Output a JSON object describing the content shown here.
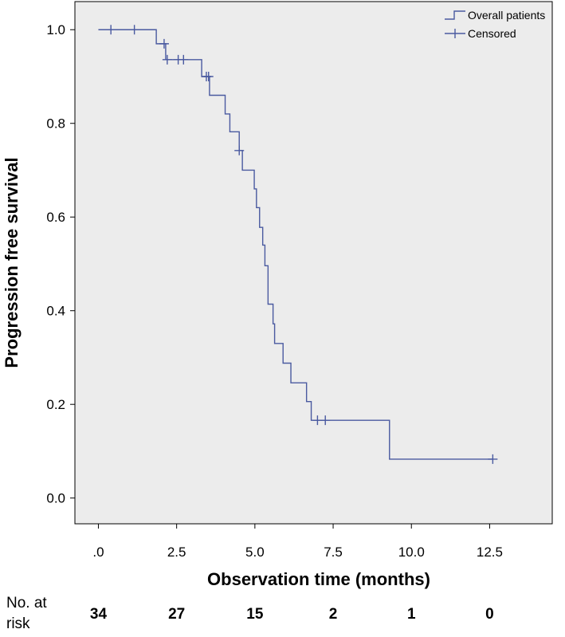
{
  "chart_data": {
    "type": "line",
    "subtype": "kaplan-meier",
    "xlabel": "Observation time (months)",
    "ylabel": "Progression free survival",
    "xlim": [
      -0.75,
      14.5
    ],
    "ylim": [
      -0.055,
      1.06
    ],
    "x_ticks": [
      0,
      2.5,
      5.0,
      7.5,
      10.0,
      12.5
    ],
    "x_tick_labels": [
      ".0",
      "2.5",
      "5.0",
      "7.5",
      "10.0",
      "12.5"
    ],
    "y_ticks": [
      0.0,
      0.2,
      0.4,
      0.6,
      0.8,
      1.0
    ],
    "y_tick_labels": [
      "0.0",
      "0.2",
      "0.4",
      "0.6",
      "0.8",
      "1.0"
    ],
    "grid": false,
    "background": "#ececec",
    "series_color": "#4a5aa0",
    "legend": {
      "position": "top-right",
      "entries": [
        {
          "label": "Overall patients",
          "symbol": "step-line"
        },
        {
          "label": "Censored",
          "symbol": "plus"
        }
      ]
    },
    "series": [
      {
        "name": "Overall patients",
        "steps": [
          {
            "x": 0.0,
            "y": 1.0
          },
          {
            "x": 1.85,
            "y": 0.97
          },
          {
            "x": 2.15,
            "y": 0.936
          },
          {
            "x": 3.3,
            "y": 0.9
          },
          {
            "x": 3.55,
            "y": 0.86
          },
          {
            "x": 4.05,
            "y": 0.82
          },
          {
            "x": 4.2,
            "y": 0.782
          },
          {
            "x": 4.5,
            "y": 0.742
          },
          {
            "x": 4.6,
            "y": 0.7
          },
          {
            "x": 4.98,
            "y": 0.66
          },
          {
            "x": 5.05,
            "y": 0.62
          },
          {
            "x": 5.15,
            "y": 0.578
          },
          {
            "x": 5.25,
            "y": 0.54
          },
          {
            "x": 5.32,
            "y": 0.496
          },
          {
            "x": 5.42,
            "y": 0.414
          },
          {
            "x": 5.58,
            "y": 0.372
          },
          {
            "x": 5.63,
            "y": 0.33
          },
          {
            "x": 5.9,
            "y": 0.288
          },
          {
            "x": 6.15,
            "y": 0.246
          },
          {
            "x": 6.65,
            "y": 0.206
          },
          {
            "x": 6.8,
            "y": 0.166
          },
          {
            "x": 9.3,
            "y": 0.083
          }
        ],
        "end_x": 12.6,
        "censored": [
          {
            "x": 0.4,
            "y": 1.0
          },
          {
            "x": 1.15,
            "y": 1.0
          },
          {
            "x": 2.1,
            "y": 0.97
          },
          {
            "x": 2.2,
            "y": 0.936
          },
          {
            "x": 2.55,
            "y": 0.936
          },
          {
            "x": 2.72,
            "y": 0.936
          },
          {
            "x": 3.45,
            "y": 0.9
          },
          {
            "x": 3.52,
            "y": 0.9
          },
          {
            "x": 4.5,
            "y": 0.742
          },
          {
            "x": 7.0,
            "y": 0.166
          },
          {
            "x": 7.25,
            "y": 0.166
          },
          {
            "x": 12.6,
            "y": 0.083
          }
        ]
      }
    ],
    "risk_table": {
      "label": "No. at risk",
      "times": [
        0,
        2.5,
        5.0,
        7.5,
        10.0,
        12.5
      ],
      "counts": [
        "34",
        "27",
        "15",
        "2",
        "1",
        "0"
      ]
    }
  }
}
